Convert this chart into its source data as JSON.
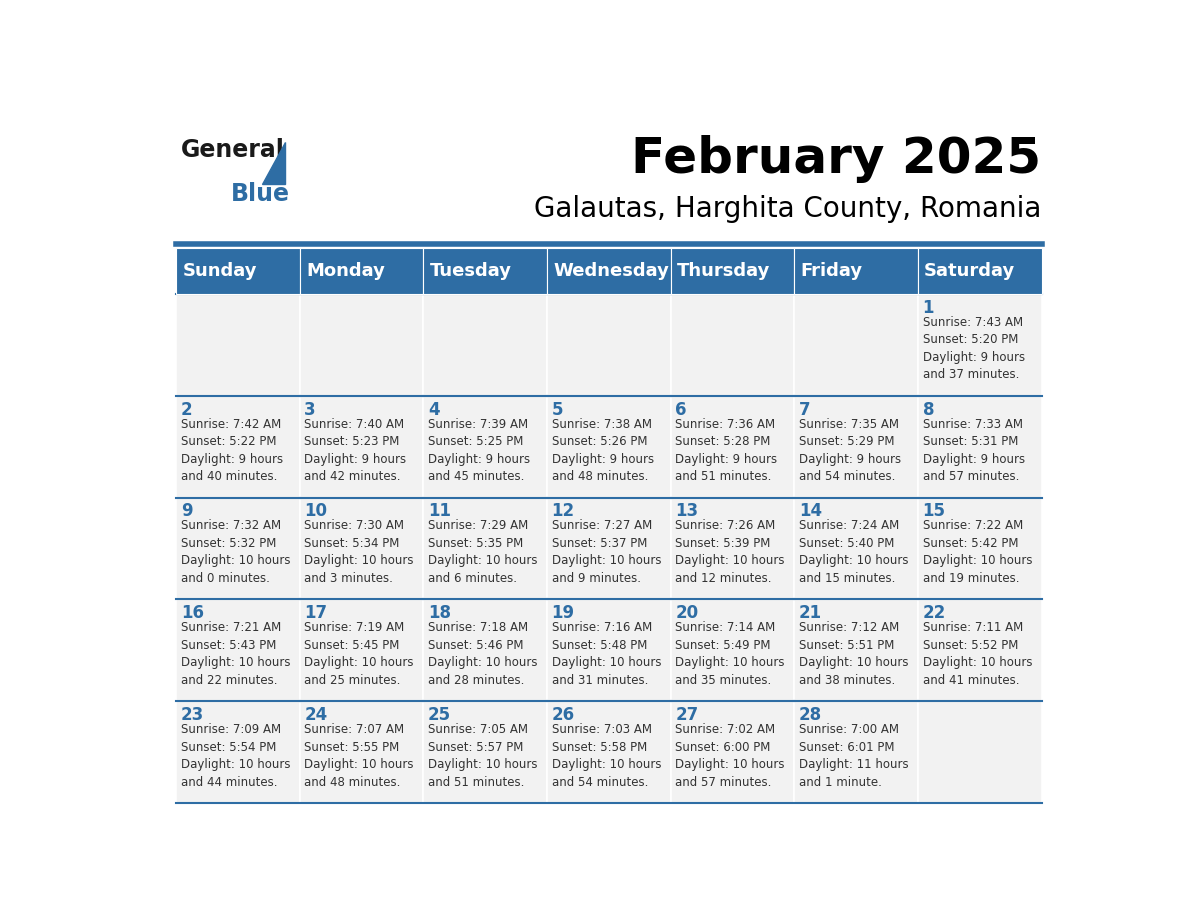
{
  "title": "February 2025",
  "subtitle": "Galautas, Harghita County, Romania",
  "header_color": "#2E6DA4",
  "header_text_color": "#FFFFFF",
  "cell_bg_color": "#F2F2F2",
  "cell_text_color": "#333333",
  "day_number_color": "#2E6DA4",
  "border_color": "#2E6DA4",
  "days_of_week": [
    "Sunday",
    "Monday",
    "Tuesday",
    "Wednesday",
    "Thursday",
    "Friday",
    "Saturday"
  ],
  "weeks": [
    [
      {
        "day": "",
        "info": ""
      },
      {
        "day": "",
        "info": ""
      },
      {
        "day": "",
        "info": ""
      },
      {
        "day": "",
        "info": ""
      },
      {
        "day": "",
        "info": ""
      },
      {
        "day": "",
        "info": ""
      },
      {
        "day": "1",
        "info": "Sunrise: 7:43 AM\nSunset: 5:20 PM\nDaylight: 9 hours\nand 37 minutes."
      }
    ],
    [
      {
        "day": "2",
        "info": "Sunrise: 7:42 AM\nSunset: 5:22 PM\nDaylight: 9 hours\nand 40 minutes."
      },
      {
        "day": "3",
        "info": "Sunrise: 7:40 AM\nSunset: 5:23 PM\nDaylight: 9 hours\nand 42 minutes."
      },
      {
        "day": "4",
        "info": "Sunrise: 7:39 AM\nSunset: 5:25 PM\nDaylight: 9 hours\nand 45 minutes."
      },
      {
        "day": "5",
        "info": "Sunrise: 7:38 AM\nSunset: 5:26 PM\nDaylight: 9 hours\nand 48 minutes."
      },
      {
        "day": "6",
        "info": "Sunrise: 7:36 AM\nSunset: 5:28 PM\nDaylight: 9 hours\nand 51 minutes."
      },
      {
        "day": "7",
        "info": "Sunrise: 7:35 AM\nSunset: 5:29 PM\nDaylight: 9 hours\nand 54 minutes."
      },
      {
        "day": "8",
        "info": "Sunrise: 7:33 AM\nSunset: 5:31 PM\nDaylight: 9 hours\nand 57 minutes."
      }
    ],
    [
      {
        "day": "9",
        "info": "Sunrise: 7:32 AM\nSunset: 5:32 PM\nDaylight: 10 hours\nand 0 minutes."
      },
      {
        "day": "10",
        "info": "Sunrise: 7:30 AM\nSunset: 5:34 PM\nDaylight: 10 hours\nand 3 minutes."
      },
      {
        "day": "11",
        "info": "Sunrise: 7:29 AM\nSunset: 5:35 PM\nDaylight: 10 hours\nand 6 minutes."
      },
      {
        "day": "12",
        "info": "Sunrise: 7:27 AM\nSunset: 5:37 PM\nDaylight: 10 hours\nand 9 minutes."
      },
      {
        "day": "13",
        "info": "Sunrise: 7:26 AM\nSunset: 5:39 PM\nDaylight: 10 hours\nand 12 minutes."
      },
      {
        "day": "14",
        "info": "Sunrise: 7:24 AM\nSunset: 5:40 PM\nDaylight: 10 hours\nand 15 minutes."
      },
      {
        "day": "15",
        "info": "Sunrise: 7:22 AM\nSunset: 5:42 PM\nDaylight: 10 hours\nand 19 minutes."
      }
    ],
    [
      {
        "day": "16",
        "info": "Sunrise: 7:21 AM\nSunset: 5:43 PM\nDaylight: 10 hours\nand 22 minutes."
      },
      {
        "day": "17",
        "info": "Sunrise: 7:19 AM\nSunset: 5:45 PM\nDaylight: 10 hours\nand 25 minutes."
      },
      {
        "day": "18",
        "info": "Sunrise: 7:18 AM\nSunset: 5:46 PM\nDaylight: 10 hours\nand 28 minutes."
      },
      {
        "day": "19",
        "info": "Sunrise: 7:16 AM\nSunset: 5:48 PM\nDaylight: 10 hours\nand 31 minutes."
      },
      {
        "day": "20",
        "info": "Sunrise: 7:14 AM\nSunset: 5:49 PM\nDaylight: 10 hours\nand 35 minutes."
      },
      {
        "day": "21",
        "info": "Sunrise: 7:12 AM\nSunset: 5:51 PM\nDaylight: 10 hours\nand 38 minutes."
      },
      {
        "day": "22",
        "info": "Sunrise: 7:11 AM\nSunset: 5:52 PM\nDaylight: 10 hours\nand 41 minutes."
      }
    ],
    [
      {
        "day": "23",
        "info": "Sunrise: 7:09 AM\nSunset: 5:54 PM\nDaylight: 10 hours\nand 44 minutes."
      },
      {
        "day": "24",
        "info": "Sunrise: 7:07 AM\nSunset: 5:55 PM\nDaylight: 10 hours\nand 48 minutes."
      },
      {
        "day": "25",
        "info": "Sunrise: 7:05 AM\nSunset: 5:57 PM\nDaylight: 10 hours\nand 51 minutes."
      },
      {
        "day": "26",
        "info": "Sunrise: 7:03 AM\nSunset: 5:58 PM\nDaylight: 10 hours\nand 54 minutes."
      },
      {
        "day": "27",
        "info": "Sunrise: 7:02 AM\nSunset: 6:00 PM\nDaylight: 10 hours\nand 57 minutes."
      },
      {
        "day": "28",
        "info": "Sunrise: 7:00 AM\nSunset: 6:01 PM\nDaylight: 11 hours\nand 1 minute."
      },
      {
        "day": "",
        "info": ""
      }
    ]
  ],
  "header_fontsize": 36,
  "subtitle_fontsize": 20,
  "dow_fontsize": 13,
  "day_num_fontsize": 12,
  "cell_text_fontsize": 8.5
}
